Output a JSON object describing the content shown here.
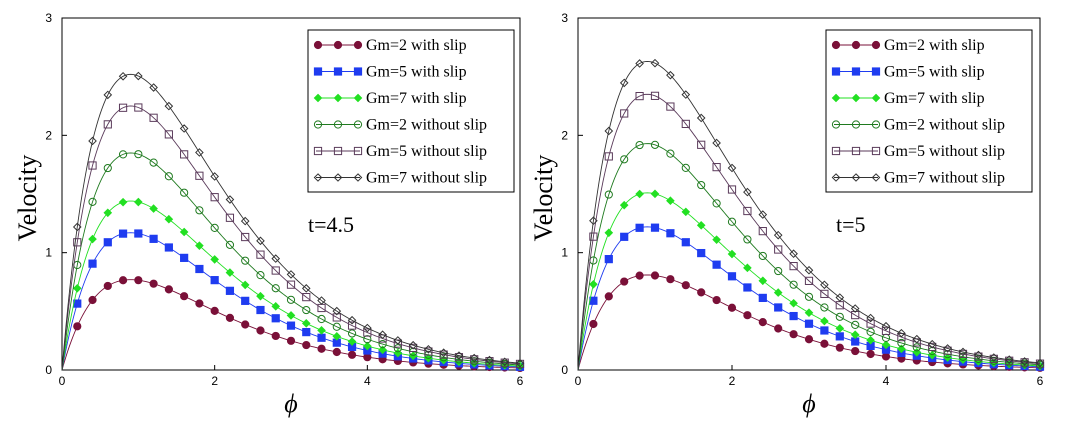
{
  "chart_data": [
    {
      "type": "line",
      "annotation": "t=4.5",
      "xlabel": "ϕ",
      "ylabel": "Velocity",
      "xlim": [
        0,
        6
      ],
      "ylim": [
        0,
        3
      ],
      "xticks": [
        "0",
        "2",
        "4",
        "6"
      ],
      "yticks": [
        "0",
        "1",
        "2",
        "3"
      ],
      "peaks": [
        0.77,
        1.17,
        1.44,
        1.85,
        2.25,
        2.52
      ],
      "series": [
        {
          "name": "Gm=2  with slip",
          "color": "#7a1038",
          "marker": "circle-filled"
        },
        {
          "name": "Gm=5 with slip",
          "color": "#1f3cf0",
          "marker": "square-filled"
        },
        {
          "name": "Gm=7 with slip",
          "color": "#22e022",
          "marker": "diamond-filled"
        },
        {
          "name": "Gm=2 without slip",
          "color": "#1f7a1f",
          "marker": "circle-open"
        },
        {
          "name": "Gm=5 without slip",
          "color": "#5a3a5a",
          "marker": "square-open"
        },
        {
          "name": "Gm=7 without slip",
          "color": "#333333",
          "marker": "diamond-open"
        }
      ]
    },
    {
      "type": "line",
      "annotation": "t=5",
      "xlabel": "ϕ",
      "ylabel": "Velocity",
      "xlim": [
        0,
        6
      ],
      "ylim": [
        0,
        3
      ],
      "xticks": [
        "0",
        "2",
        "4",
        "6"
      ],
      "yticks": [
        "0",
        "1",
        "2",
        "3"
      ],
      "peaks": [
        0.81,
        1.22,
        1.51,
        1.93,
        2.35,
        2.63
      ],
      "series": [
        {
          "name": "Gm=2  with slip",
          "color": "#7a1038",
          "marker": "circle-filled"
        },
        {
          "name": "Gm=5 with slip",
          "color": "#1f3cf0",
          "marker": "square-filled"
        },
        {
          "name": "Gm=7 with slip",
          "color": "#22e022",
          "marker": "diamond-filled"
        },
        {
          "name": "Gm=2 without slip",
          "color": "#1f7a1f",
          "marker": "circle-open"
        },
        {
          "name": "Gm=5 without slip",
          "color": "#5a3a5a",
          "marker": "square-open"
        },
        {
          "name": "Gm=7 without slip",
          "color": "#333333",
          "marker": "diamond-open"
        }
      ]
    }
  ]
}
